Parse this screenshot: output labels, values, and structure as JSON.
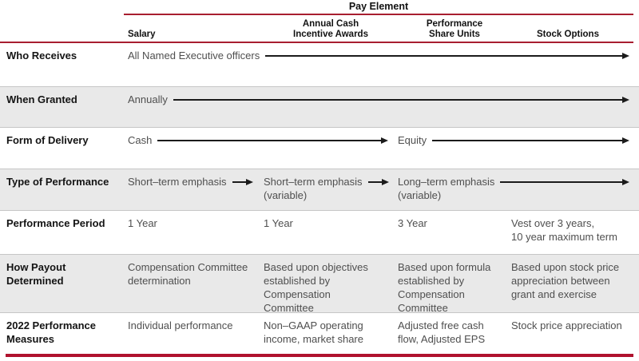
{
  "table": {
    "title": "Pay Element",
    "column_headers": {
      "salary": "Salary",
      "annual_cash": "Annual Cash\nIncentive Awards",
      "psu": "Performance\nShare Units",
      "stock_options": "Stock Options"
    },
    "rows": {
      "who_receives": {
        "label": "Who Receives",
        "all_columns": "All Named Executive officers"
      },
      "when_granted": {
        "label": "When Granted",
        "all_columns": "Annually"
      },
      "form_of_delivery": {
        "label": "Form of Delivery",
        "cash_columns": "Cash",
        "equity_columns": "Equity"
      },
      "type_of_performance": {
        "label": "Type of Performance",
        "salary": "Short–term emphasis",
        "annual_cash": "Short–term emphasis",
        "annual_cash_note": "(variable)",
        "psu": "Long–term emphasis",
        "psu_note": "(variable)"
      },
      "performance_period": {
        "label": "Performance Period",
        "salary": "1 Year",
        "annual_cash": "1 Year",
        "psu": "3 Year",
        "stock_options": "Vest over 3 years,\n10 year maximum term"
      },
      "how_payout_determined": {
        "label": "How Payout\nDetermined",
        "salary": "Compensation Committee\ndetermination",
        "annual_cash": "Based upon objectives\nestablished by\nCompensation\nCommittee",
        "psu": "Based upon formula\nestablished by\nCompensation\nCommittee",
        "stock_options": "Based upon stock price\nappreciation between\ngrant and exercise"
      },
      "performance_measures_2022": {
        "label": "2022 Performance\nMeasures",
        "salary": "Individual performance",
        "annual_cash": "Non–GAAP operating\nincome, market share",
        "psu": "Adjusted free cash\nflow, Adjusted EPS",
        "stock_options": "Stock price appreciation"
      }
    }
  },
  "colors": {
    "accent_red": "#a81e30",
    "bottom_bar_red": "#b0122e",
    "row_shade_gray": "#e9e9e9",
    "arrow_black": "#1b1b1b",
    "body_text_gray": "#4f4f4f"
  }
}
